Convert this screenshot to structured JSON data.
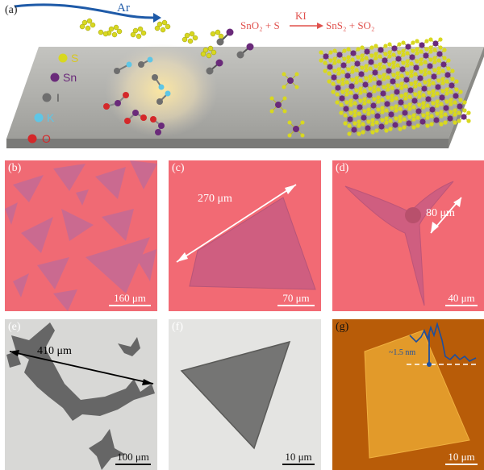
{
  "panel_a": {
    "label": "(a)",
    "carrier_gas": "Ar",
    "reaction": {
      "reactants": "SnO₂ + S",
      "catalyst": "KI",
      "products": "SnS₂ + SO₂"
    },
    "legend": [
      {
        "symbol": "S",
        "color": "#d8d820"
      },
      {
        "symbol": "Sn",
        "color": "#6a2a7a"
      },
      {
        "symbol": "I",
        "color": "#6e6e6e"
      },
      {
        "symbol": "K",
        "color": "#5ec6e6"
      },
      {
        "symbol": "O",
        "color": "#d4282a"
      }
    ]
  },
  "panel_b": {
    "label": "(b)",
    "scale": "160 μm"
  },
  "panel_c": {
    "label": "(c)",
    "measurement": "270 μm",
    "scale": "70 μm"
  },
  "panel_d": {
    "label": "(d)",
    "measurement": "80 μm",
    "scale": "40 μm"
  },
  "panel_e": {
    "label": "(e)",
    "measurement": "410 μm",
    "scale": "100 μm"
  },
  "panel_f": {
    "label": "(f)",
    "scale": "10 μm"
  },
  "panel_g": {
    "label": "(g)",
    "height": "~1.5 nm",
    "scale": "10 μm"
  }
}
